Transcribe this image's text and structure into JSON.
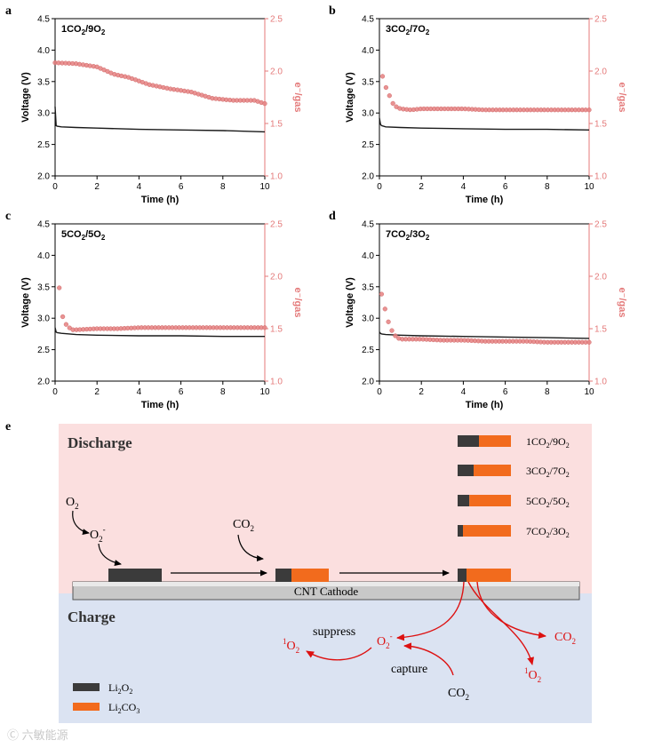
{
  "axis_labels": {
    "time": "Time (h)",
    "voltage": "Voltage (V)",
    "egas": "e⁻/gas"
  },
  "panel_letters": [
    "a",
    "b",
    "c",
    "d",
    "e"
  ],
  "colors": {
    "voltage_line": "#1a1a1a",
    "egas_markers": "#e58080",
    "egas_axis": "#e47a7a",
    "discharge_bg": "#fbdfdf",
    "charge_bg": "#dbe3f2",
    "li2o2": "#3b3b3b",
    "li2co3": "#f26b1d",
    "red_arrows": "#dd1111"
  },
  "chart_data": [
    {
      "panel": "a",
      "label": "1CO2/9O2",
      "type": "line+scatter",
      "xlabel": "Time (h)",
      "ylabel": "Voltage (V)",
      "y2label": "e⁻/gas",
      "xlim": [
        0,
        10
      ],
      "ylim": [
        2.0,
        4.5
      ],
      "y2lim": [
        1.0,
        2.5
      ],
      "xticks": [
        0,
        2,
        4,
        6,
        8,
        10
      ],
      "yticks": [
        2.0,
        2.5,
        3.0,
        3.5,
        4.0,
        4.5
      ],
      "y2ticks": [
        1.0,
        1.5,
        2.0,
        2.5
      ],
      "series": [
        {
          "name": "Voltage",
          "axis": "left",
          "style": "line",
          "x": [
            0,
            0.05,
            0.1,
            0.3,
            1,
            2,
            4,
            6,
            8,
            10
          ],
          "y": [
            3.1,
            2.8,
            2.79,
            2.78,
            2.77,
            2.76,
            2.74,
            2.73,
            2.72,
            2.7
          ]
        },
        {
          "name": "e-/gas",
          "axis": "right",
          "style": "markers",
          "x": [
            0,
            1,
            2,
            2.8,
            3.5,
            4.5,
            5.5,
            6.5,
            7.5,
            8.5,
            9.5,
            10
          ],
          "y": [
            2.08,
            2.07,
            2.04,
            1.97,
            1.94,
            1.87,
            1.83,
            1.8,
            1.74,
            1.72,
            1.72,
            1.69
          ]
        }
      ]
    },
    {
      "panel": "b",
      "label": "3CO2/7O2",
      "type": "line+scatter",
      "xlabel": "Time (h)",
      "ylabel": "Voltage (V)",
      "y2label": "e⁻/gas",
      "xlim": [
        0,
        10
      ],
      "ylim": [
        2.0,
        4.5
      ],
      "y2lim": [
        1.0,
        2.5
      ],
      "xticks": [
        0,
        2,
        4,
        6,
        8,
        10
      ],
      "yticks": [
        2.0,
        2.5,
        3.0,
        3.5,
        4.0,
        4.5
      ],
      "y2ticks": [
        1.0,
        1.5,
        2.0,
        2.5
      ],
      "series": [
        {
          "name": "Voltage",
          "axis": "left",
          "style": "line",
          "x": [
            0,
            0.05,
            0.1,
            0.3,
            1,
            2,
            4,
            6,
            8,
            10
          ],
          "y": [
            2.92,
            2.82,
            2.8,
            2.78,
            2.77,
            2.76,
            2.75,
            2.74,
            2.74,
            2.73
          ]
        },
        {
          "name": "e-/gas",
          "axis": "right",
          "style": "markers",
          "x": [
            0.15,
            0.3,
            0.45,
            0.6,
            0.8,
            1.0,
            1.5,
            2,
            3,
            4,
            5,
            6,
            7,
            8,
            9,
            10
          ],
          "y": [
            1.95,
            1.85,
            1.78,
            1.7,
            1.66,
            1.64,
            1.63,
            1.64,
            1.64,
            1.64,
            1.63,
            1.63,
            1.63,
            1.63,
            1.63,
            1.63
          ]
        }
      ]
    },
    {
      "panel": "c",
      "label": "5CO2/5O2",
      "type": "line+scatter",
      "xlabel": "Time (h)",
      "ylabel": "Voltage (V)",
      "y2label": "e⁻/gas",
      "xlim": [
        0,
        10
      ],
      "ylim": [
        2.0,
        4.5
      ],
      "y2lim": [
        1.0,
        2.5
      ],
      "xticks": [
        0,
        2,
        4,
        6,
        8,
        10
      ],
      "yticks": [
        2.0,
        2.5,
        3.0,
        3.5,
        4.0,
        4.5
      ],
      "y2ticks": [
        1.0,
        1.5,
        2.0,
        2.5
      ],
      "series": [
        {
          "name": "Voltage",
          "axis": "left",
          "style": "line",
          "x": [
            0,
            0.05,
            0.1,
            0.3,
            1,
            2,
            4,
            6,
            8,
            10
          ],
          "y": [
            2.85,
            2.78,
            2.77,
            2.76,
            2.74,
            2.73,
            2.72,
            2.72,
            2.71,
            2.71
          ]
        },
        {
          "name": "e-/gas",
          "axis": "right",
          "style": "markers",
          "x": [
            0.2,
            0.35,
            0.55,
            0.8,
            1.0,
            2,
            3,
            4,
            5,
            6,
            7,
            8,
            9,
            10
          ],
          "y": [
            1.89,
            1.62,
            1.53,
            1.49,
            1.49,
            1.5,
            1.5,
            1.51,
            1.51,
            1.51,
            1.51,
            1.51,
            1.51,
            1.51
          ]
        }
      ]
    },
    {
      "panel": "d",
      "label": "7CO2/3O2",
      "type": "line+scatter",
      "xlabel": "Time (h)",
      "ylabel": "Voltage (V)",
      "y2label": "e⁻/gas",
      "xlim": [
        0,
        10
      ],
      "ylim": [
        2.0,
        4.5
      ],
      "y2lim": [
        1.0,
        2.5
      ],
      "xticks": [
        0,
        2,
        4,
        6,
        8,
        10
      ],
      "yticks": [
        2.0,
        2.5,
        3.0,
        3.5,
        4.0,
        4.5
      ],
      "y2ticks": [
        1.0,
        1.5,
        2.0,
        2.5
      ],
      "series": [
        {
          "name": "Voltage",
          "axis": "left",
          "style": "line",
          "x": [
            0,
            0.05,
            0.1,
            0.3,
            1,
            2,
            4,
            6,
            8,
            10
          ],
          "y": [
            2.78,
            2.76,
            2.75,
            2.74,
            2.73,
            2.72,
            2.71,
            2.7,
            2.69,
            2.68
          ]
        },
        {
          "name": "e-/gas",
          "axis": "right",
          "style": "markers",
          "x": [
            0.1,
            0.25,
            0.4,
            0.6,
            0.8,
            1.0,
            2,
            3,
            4,
            5,
            6,
            7,
            8,
            9,
            10
          ],
          "y": [
            1.83,
            1.7,
            1.58,
            1.48,
            1.42,
            1.4,
            1.4,
            1.39,
            1.39,
            1.38,
            1.38,
            1.38,
            1.37,
            1.37,
            1.37
          ]
        }
      ]
    }
  ],
  "schematic": {
    "discharge_label": "Discharge",
    "charge_label": "Charge",
    "cathode_label": "CNT Cathode",
    "o2": {
      "base": "O",
      "sub": "2"
    },
    "o2_minus_top": {
      "base": "O",
      "sub": "2",
      "sup": "-"
    },
    "co2_top": {
      "base": "CO",
      "sub": "2"
    },
    "suppress_label": "suppress",
    "capture_label": "capture",
    "singlet_o2_left": {
      "pre_sup": "1",
      "base": "O",
      "sub": "2"
    },
    "o2_minus_bottom": {
      "base": "O",
      "sub": "2",
      "sup": "-"
    },
    "co2_bottom": {
      "base": "CO",
      "sub": "2"
    },
    "co2_right": {
      "base": "CO",
      "sub": "2"
    },
    "singlet_o2_right": {
      "pre_sup": "1",
      "base": "O",
      "sub": "2"
    },
    "ratio_bars": [
      {
        "co2": "1",
        "o2": "9",
        "li2o2_fraction": 0.4
      },
      {
        "co2": "3",
        "o2": "7",
        "li2o2_fraction": 0.3
      },
      {
        "co2": "5",
        "o2": "5",
        "li2o2_fraction": 0.22
      },
      {
        "co2": "7",
        "o2": "3",
        "li2o2_fraction": 0.1
      }
    ],
    "formula_co": "CO",
    "formula_o": "O",
    "legend": [
      {
        "name": "Li2O2",
        "base1": "Li",
        "sub1": "2",
        "base2": "O",
        "sub2": "2"
      },
      {
        "name": "Li2CO3",
        "base1": "Li",
        "sub1": "2",
        "base2": "CO",
        "sub2": "3"
      }
    ]
  },
  "watermark": "Ⓒ 六敏能源"
}
